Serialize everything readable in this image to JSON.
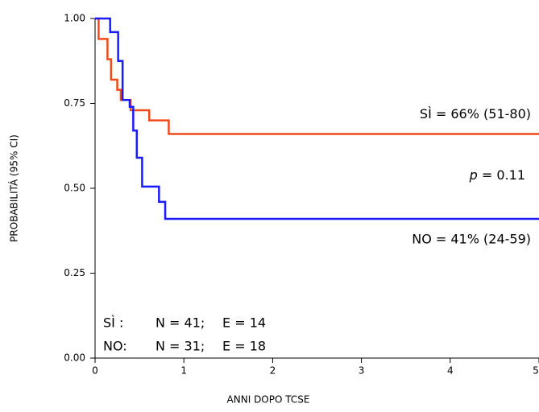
{
  "chart_data": {
    "type": "line",
    "step": true,
    "x_label": "ANNI DOPO TCSE",
    "y_label": "PROBABILITÁ (95% CI)",
    "xlim": [
      0,
      5
    ],
    "xticks": [
      0,
      1,
      2,
      3,
      4,
      5
    ],
    "ylim": [
      0,
      1
    ],
    "yticks": [
      {
        "value": 0,
        "label": "0.00"
      },
      {
        "value": 0.25,
        "label": "0.25"
      },
      {
        "value": 0.5,
        "label": "0.50"
      },
      {
        "value": 0.75,
        "label": "0.75"
      },
      {
        "value": 1,
        "label": "1.00"
      }
    ],
    "series": [
      {
        "name": "SÌ :",
        "color": "#f04a1c",
        "x": [
          0,
          0.04,
          0.14,
          0.18,
          0.25,
          0.29,
          0.4,
          0.61,
          0.83,
          5
        ],
        "values": [
          1,
          0.94,
          0.88,
          0.82,
          0.79,
          0.76,
          0.73,
          0.7,
          0.66,
          0.66
        ],
        "estimate": "SÌ = 66% (51-80)",
        "n": "N = 41;",
        "e": "E = 14"
      },
      {
        "name": "NO:",
        "color": "#1a1aff",
        "x": [
          0,
          0.17,
          0.26,
          0.31,
          0.39,
          0.43,
          0.47,
          0.53,
          0.72,
          0.79,
          5
        ],
        "values": [
          1,
          0.96,
          0.875,
          0.76,
          0.74,
          0.67,
          0.59,
          0.505,
          0.46,
          0.41,
          0.41
        ],
        "estimate": "NO = 41% (24-59)",
        "n": "N = 31;",
        "e": "E = 18"
      }
    ],
    "p_symbol": "p",
    "p_text": "= 0.11"
  }
}
